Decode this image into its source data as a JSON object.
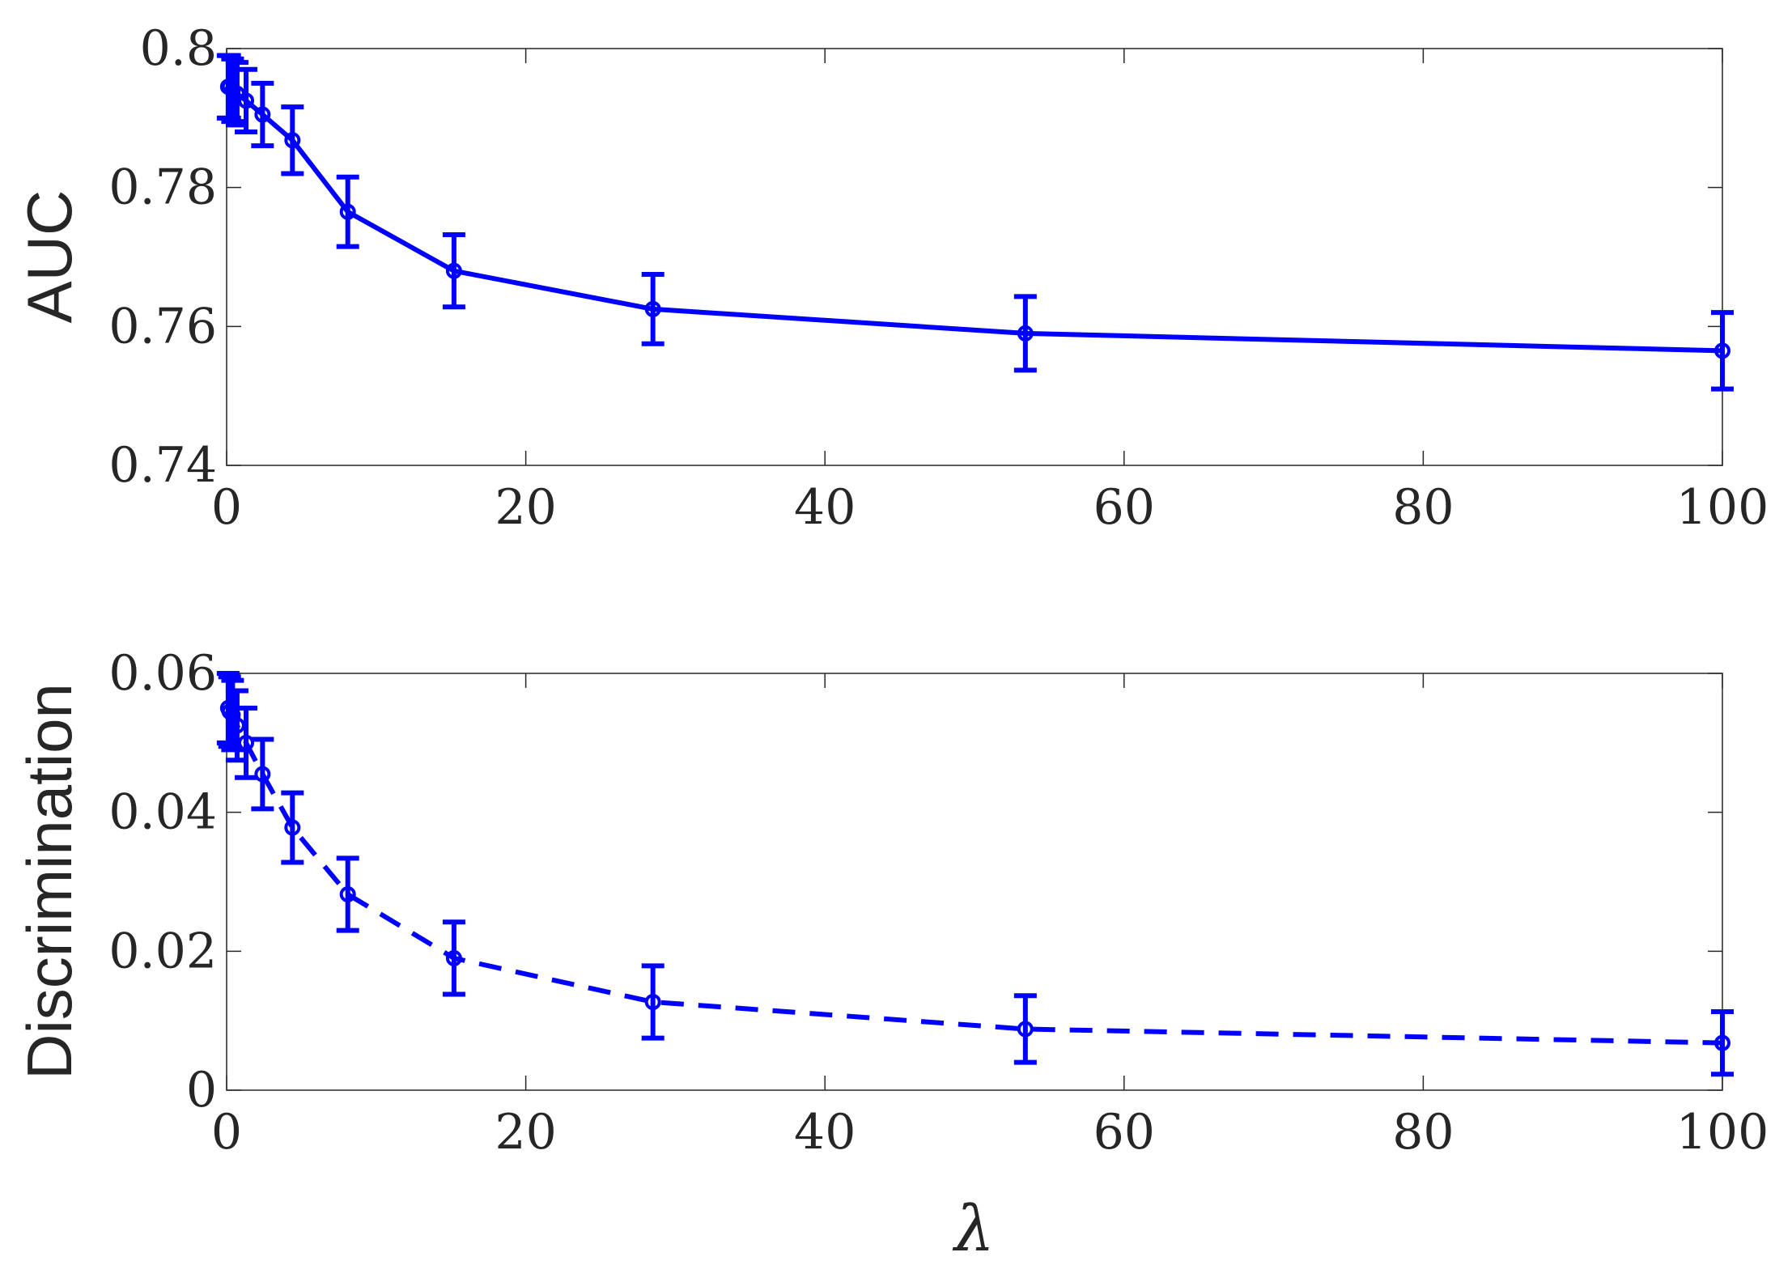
{
  "chart_data": [
    {
      "type": "line",
      "xlabel": "",
      "ylabel": "AUC",
      "xlim": [
        0,
        100
      ],
      "ylim": [
        0.74,
        0.8
      ],
      "xticks": [
        "0",
        "20",
        "40",
        "60",
        "80",
        "100"
      ],
      "yticks": [
        "0.74",
        "0.76",
        "0.78",
        "0.8"
      ],
      "line_style": "solid",
      "color": "#0000ff",
      "grid": false,
      "series": [
        {
          "x": [
            0.1,
            0.2,
            0.4,
            0.7,
            1.3,
            2.4,
            4.4,
            8.1,
            15.2,
            28.5,
            53.4,
            100
          ],
          "y": [
            0.7945,
            0.7945,
            0.794,
            0.7935,
            0.7925,
            0.7905,
            0.7868,
            0.7765,
            0.768,
            0.7625,
            0.759,
            0.7565
          ],
          "err": [
            0.0045,
            0.0045,
            0.0045,
            0.0045,
            0.0045,
            0.0045,
            0.0048,
            0.005,
            0.0052,
            0.005,
            0.0053,
            0.0055
          ]
        }
      ]
    },
    {
      "type": "line",
      "xlabel": "λ",
      "ylabel": "Discrimination",
      "xlim": [
        0,
        100
      ],
      "ylim": [
        0,
        0.06
      ],
      "xticks": [
        "0",
        "20",
        "40",
        "60",
        "80",
        "100"
      ],
      "yticks": [
        "0",
        "0.02",
        "0.04",
        "0.06"
      ],
      "line_style": "dashed",
      "color": "#0000ff",
      "grid": false,
      "series": [
        {
          "x": [
            0.1,
            0.2,
            0.4,
            0.7,
            1.3,
            2.4,
            4.4,
            8.1,
            15.2,
            28.5,
            53.4,
            100
          ],
          "y": [
            0.055,
            0.0545,
            0.054,
            0.0525,
            0.05,
            0.0455,
            0.0378,
            0.0282,
            0.019,
            0.0127,
            0.0088,
            0.0068
          ],
          "err": [
            0.005,
            0.005,
            0.005,
            0.005,
            0.005,
            0.005,
            0.005,
            0.0052,
            0.0052,
            0.0052,
            0.0048,
            0.0045
          ]
        }
      ]
    }
  ]
}
